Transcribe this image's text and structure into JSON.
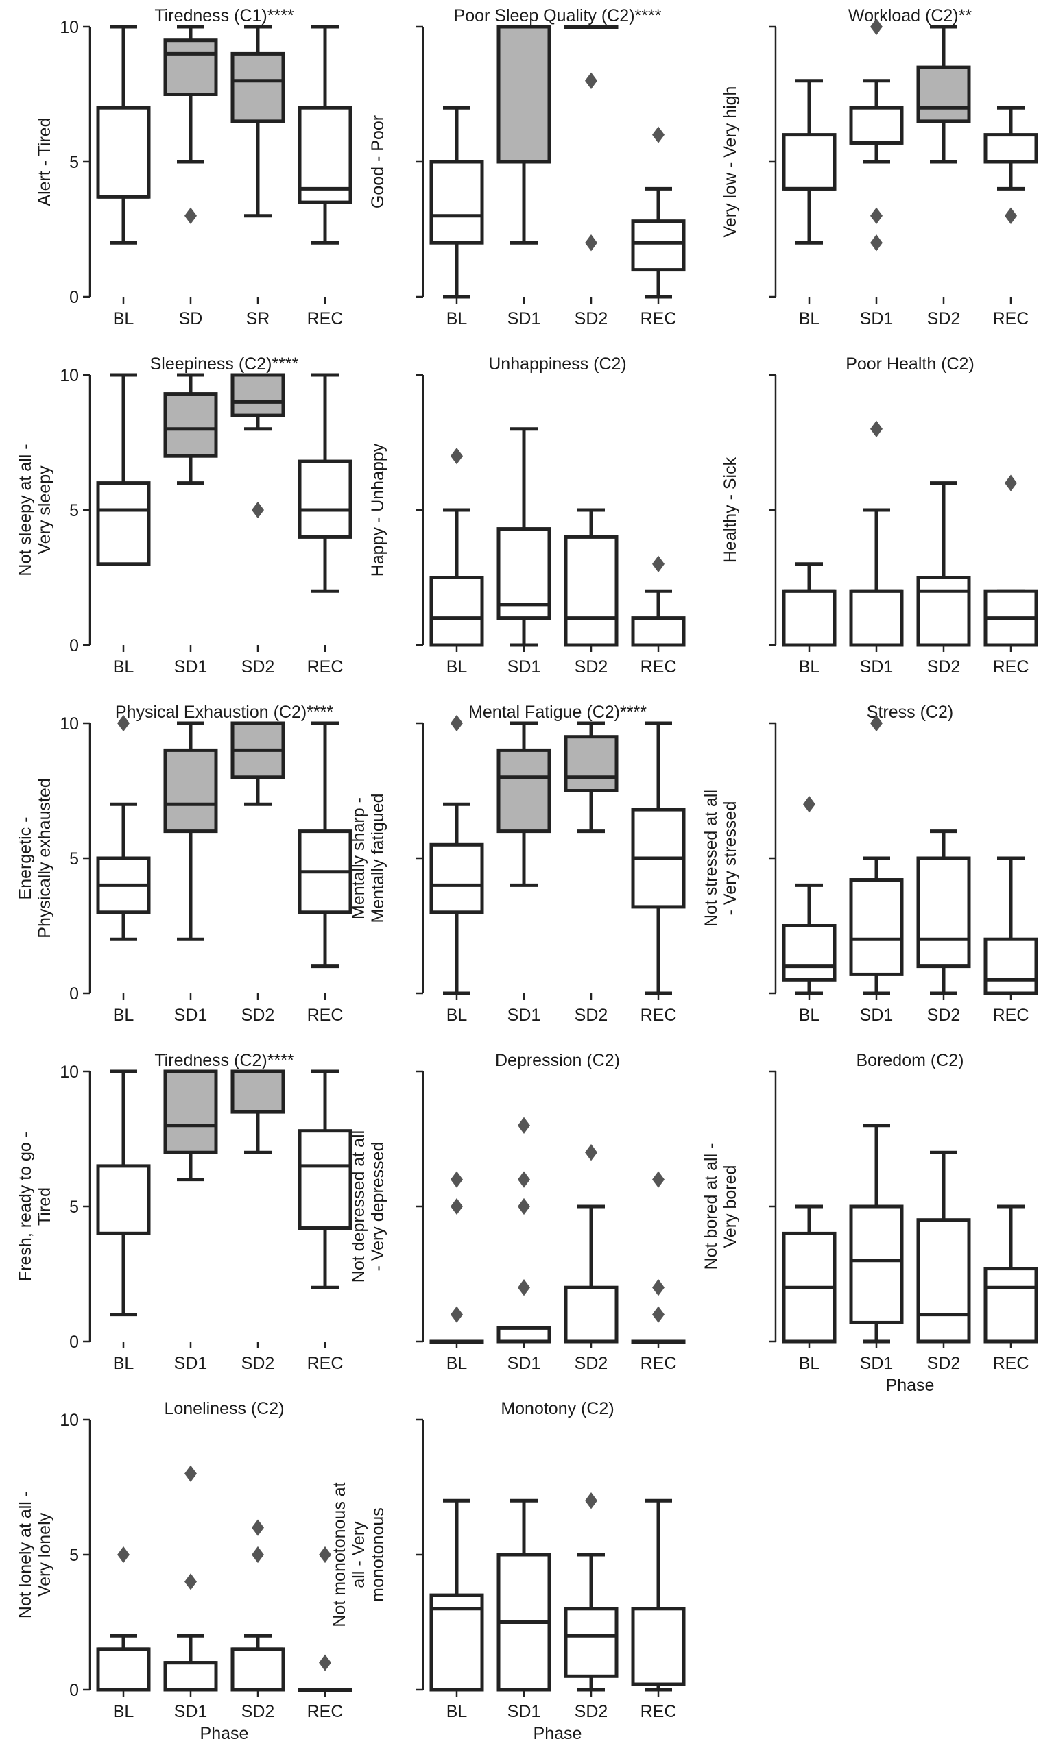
{
  "colors": {
    "shaded": "#b3b3b3",
    "plain": "#ffffff",
    "line": "#222222",
    "flier": "#555555"
  },
  "chart_data": [
    {
      "type": "box",
      "title": "Tiredness (C1)****",
      "ylabel": [
        "Alert - Tired"
      ],
      "xlabel": "",
      "ylim": [
        0,
        10
      ],
      "yticks": [
        "0",
        "5",
        "10"
      ],
      "categories": [
        "BL",
        "SD",
        "SR",
        "REC"
      ],
      "boxes": [
        {
          "q1": 3.7,
          "med": 3.7,
          "q3": 7,
          "lo": 2,
          "hi": 10,
          "fliers": [],
          "shaded": false
        },
        {
          "q1": 7.5,
          "med": 9,
          "q3": 9.5,
          "lo": 5,
          "hi": 10,
          "fliers": [
            3
          ],
          "shaded": true
        },
        {
          "q1": 6.5,
          "med": 8,
          "q3": 9,
          "lo": 3,
          "hi": 10,
          "fliers": [],
          "shaded": true
        },
        {
          "q1": 3.5,
          "med": 4,
          "q3": 7,
          "lo": 2,
          "hi": 10,
          "fliers": [],
          "shaded": false
        }
      ]
    },
    {
      "type": "box",
      "title": "Poor Sleep Quality (C2)****",
      "ylabel": [
        "Good - Poor"
      ],
      "xlabel": "",
      "ylim": [
        0,
        10
      ],
      "yticks": [
        "",
        "",
        ""
      ],
      "categories": [
        "BL",
        "SD1",
        "SD2",
        "REC"
      ],
      "boxes": [
        {
          "q1": 2,
          "med": 3,
          "q3": 5,
          "lo": 0,
          "hi": 7,
          "fliers": [],
          "shaded": false
        },
        {
          "q1": 5,
          "med": 10,
          "q3": 10,
          "lo": 2,
          "hi": 10,
          "fliers": [],
          "shaded": true
        },
        {
          "q1": 10,
          "med": 10,
          "q3": 10,
          "lo": 10,
          "hi": 10,
          "fliers": [
            8,
            2
          ],
          "shaded": true
        },
        {
          "q1": 1,
          "med": 2,
          "q3": 2.8,
          "lo": 0,
          "hi": 4,
          "fliers": [
            6
          ],
          "shaded": false
        }
      ]
    },
    {
      "type": "box",
      "title": "Workload (C2)**",
      "ylabel": [
        "Very low - Very high"
      ],
      "xlabel": "",
      "ylim": [
        0,
        10
      ],
      "yticks": [
        "",
        "",
        ""
      ],
      "categories": [
        "BL",
        "SD1",
        "SD2",
        "REC"
      ],
      "boxes": [
        {
          "q1": 4,
          "med": 4,
          "q3": 6,
          "lo": 2,
          "hi": 8,
          "fliers": [],
          "shaded": false
        },
        {
          "q1": 5.7,
          "med": 5.7,
          "q3": 7,
          "lo": 5,
          "hi": 8,
          "fliers": [
            10,
            3,
            2
          ],
          "shaded": false
        },
        {
          "q1": 6.5,
          "med": 7,
          "q3": 8.5,
          "lo": 5,
          "hi": 10,
          "fliers": [],
          "shaded": true
        },
        {
          "q1": 5,
          "med": 5,
          "q3": 6,
          "lo": 4,
          "hi": 7,
          "fliers": [
            3
          ],
          "shaded": false
        }
      ]
    },
    {
      "type": "box",
      "title": "Sleepiness (C2)****",
      "ylabel": [
        "Not sleepy at all -",
        "Very sleepy"
      ],
      "xlabel": "",
      "ylim": [
        0,
        10
      ],
      "yticks": [
        "0",
        "5",
        "10"
      ],
      "categories": [
        "BL",
        "SD1",
        "SD2",
        "REC"
      ],
      "boxes": [
        {
          "q1": 3,
          "med": 5,
          "q3": 6,
          "lo": 3,
          "hi": 10,
          "fliers": [],
          "shaded": false
        },
        {
          "q1": 7,
          "med": 8,
          "q3": 9.3,
          "lo": 6,
          "hi": 10,
          "fliers": [],
          "shaded": true
        },
        {
          "q1": 8.5,
          "med": 9,
          "q3": 10,
          "lo": 8,
          "hi": 10,
          "fliers": [
            5
          ],
          "shaded": true
        },
        {
          "q1": 4,
          "med": 5,
          "q3": 6.8,
          "lo": 2,
          "hi": 10,
          "fliers": [],
          "shaded": false
        }
      ]
    },
    {
      "type": "box",
      "title": "Unhappiness (C2)",
      "ylabel": [
        "Happy - Unhappy"
      ],
      "xlabel": "",
      "ylim": [
        0,
        10
      ],
      "yticks": [
        "",
        "",
        ""
      ],
      "categories": [
        "BL",
        "SD1",
        "SD2",
        "REC"
      ],
      "boxes": [
        {
          "q1": 0,
          "med": 1,
          "q3": 2.5,
          "lo": 0,
          "hi": 5,
          "fliers": [
            7
          ],
          "shaded": false
        },
        {
          "q1": 1,
          "med": 1.5,
          "q3": 4.3,
          "lo": 0,
          "hi": 8,
          "fliers": [],
          "shaded": false
        },
        {
          "q1": 0,
          "med": 1,
          "q3": 4,
          "lo": 0,
          "hi": 5,
          "fliers": [],
          "shaded": false
        },
        {
          "q1": 0,
          "med": 0,
          "q3": 1,
          "lo": 0,
          "hi": 2,
          "fliers": [
            3
          ],
          "shaded": false
        }
      ]
    },
    {
      "type": "box",
      "title": "Poor Health (C2)",
      "ylabel": [
        "Healthy - Sick"
      ],
      "xlabel": "",
      "ylim": [
        0,
        10
      ],
      "yticks": [
        "",
        "",
        ""
      ],
      "categories": [
        "BL",
        "SD1",
        "SD2",
        "REC"
      ],
      "boxes": [
        {
          "q1": 0,
          "med": 2,
          "q3": 2,
          "lo": 0,
          "hi": 3,
          "fliers": [],
          "shaded": false
        },
        {
          "q1": 0,
          "med": 2,
          "q3": 2,
          "lo": 0,
          "hi": 5,
          "fliers": [
            8
          ],
          "shaded": false
        },
        {
          "q1": 0,
          "med": 2,
          "q3": 2.5,
          "lo": 0,
          "hi": 6,
          "fliers": [],
          "shaded": false
        },
        {
          "q1": 0,
          "med": 1,
          "q3": 2,
          "lo": 0,
          "hi": 2,
          "fliers": [
            6
          ],
          "shaded": false
        }
      ]
    },
    {
      "type": "box",
      "title": "Physical Exhaustion (C2)****",
      "ylabel": [
        "Energetic -",
        "Physically exhausted"
      ],
      "xlabel": "",
      "ylim": [
        0,
        10
      ],
      "yticks": [
        "0",
        "5",
        "10"
      ],
      "categories": [
        "BL",
        "SD1",
        "SD2",
        "REC"
      ],
      "boxes": [
        {
          "q1": 3,
          "med": 4,
          "q3": 5,
          "lo": 2,
          "hi": 7,
          "fliers": [
            10
          ],
          "shaded": false
        },
        {
          "q1": 6,
          "med": 7,
          "q3": 9,
          "lo": 2,
          "hi": 10,
          "fliers": [],
          "shaded": true
        },
        {
          "q1": 8,
          "med": 9,
          "q3": 10,
          "lo": 7,
          "hi": 10,
          "fliers": [],
          "shaded": true
        },
        {
          "q1": 3,
          "med": 4.5,
          "q3": 6,
          "lo": 1,
          "hi": 10,
          "fliers": [],
          "shaded": false
        }
      ]
    },
    {
      "type": "box",
      "title": "Mental Fatigue (C2)****",
      "ylabel": [
        "Mentally sharp -",
        "Mentally fatigued"
      ],
      "xlabel": "",
      "ylim": [
        0,
        10
      ],
      "yticks": [
        "",
        "",
        ""
      ],
      "categories": [
        "BL",
        "SD1",
        "SD2",
        "REC"
      ],
      "boxes": [
        {
          "q1": 3,
          "med": 4,
          "q3": 5.5,
          "lo": 0,
          "hi": 7,
          "fliers": [
            10
          ],
          "shaded": false
        },
        {
          "q1": 6,
          "med": 8,
          "q3": 9,
          "lo": 4,
          "hi": 10,
          "fliers": [],
          "shaded": true
        },
        {
          "q1": 7.5,
          "med": 8,
          "q3": 9.5,
          "lo": 6,
          "hi": 10,
          "fliers": [],
          "shaded": true
        },
        {
          "q1": 3.2,
          "med": 5,
          "q3": 6.8,
          "lo": 0,
          "hi": 10,
          "fliers": [],
          "shaded": false
        }
      ]
    },
    {
      "type": "box",
      "title": "Stress (C2)",
      "ylabel": [
        "Not stressed at all",
        "- Very stressed"
      ],
      "xlabel": "",
      "ylim": [
        0,
        10
      ],
      "yticks": [
        "",
        "",
        ""
      ],
      "categories": [
        "BL",
        "SD1",
        "SD2",
        "REC"
      ],
      "boxes": [
        {
          "q1": 0.5,
          "med": 1,
          "q3": 2.5,
          "lo": 0,
          "hi": 4,
          "fliers": [
            7
          ],
          "shaded": false
        },
        {
          "q1": 0.7,
          "med": 2,
          "q3": 4.2,
          "lo": 0,
          "hi": 5,
          "fliers": [
            10
          ],
          "shaded": false
        },
        {
          "q1": 1,
          "med": 2,
          "q3": 5,
          "lo": 0,
          "hi": 6,
          "fliers": [],
          "shaded": false
        },
        {
          "q1": 0,
          "med": 0.5,
          "q3": 2,
          "lo": 0,
          "hi": 5,
          "fliers": [],
          "shaded": false
        }
      ]
    },
    {
      "type": "box",
      "title": "Tiredness (C2)****",
      "ylabel": [
        "Fresh, ready to go -",
        "Tired"
      ],
      "xlabel": "",
      "ylim": [
        0,
        10
      ],
      "yticks": [
        "0",
        "5",
        "10"
      ],
      "categories": [
        "BL",
        "SD1",
        "SD2",
        "REC"
      ],
      "boxes": [
        {
          "q1": 4,
          "med": 4,
          "q3": 6.5,
          "lo": 1,
          "hi": 10,
          "fliers": [],
          "shaded": false
        },
        {
          "q1": 7,
          "med": 8,
          "q3": 10,
          "lo": 6,
          "hi": 10,
          "fliers": [],
          "shaded": true
        },
        {
          "q1": 8.5,
          "med": 10,
          "q3": 10,
          "lo": 7,
          "hi": 10,
          "fliers": [],
          "shaded": true
        },
        {
          "q1": 4.2,
          "med": 6.5,
          "q3": 7.8,
          "lo": 2,
          "hi": 10,
          "fliers": [],
          "shaded": false
        }
      ]
    },
    {
      "type": "box",
      "title": "Depression (C2)",
      "ylabel": [
        "Not depressed at all",
        "- Very depressed"
      ],
      "xlabel": "",
      "ylim": [
        0,
        10
      ],
      "yticks": [
        "",
        "",
        ""
      ],
      "categories": [
        "BL",
        "SD1",
        "SD2",
        "REC"
      ],
      "boxes": [
        {
          "q1": 0,
          "med": 0,
          "q3": 0,
          "lo": 0,
          "hi": 0,
          "fliers": [
            6,
            5,
            1
          ],
          "shaded": false
        },
        {
          "q1": 0,
          "med": 0.5,
          "q3": 0.5,
          "lo": 0,
          "hi": 0.5,
          "fliers": [
            8,
            6,
            5,
            2
          ],
          "shaded": false
        },
        {
          "q1": 0,
          "med": 0,
          "q3": 2,
          "lo": 0,
          "hi": 5,
          "fliers": [
            7
          ],
          "shaded": false
        },
        {
          "q1": 0,
          "med": 0,
          "q3": 0,
          "lo": 0,
          "hi": 0,
          "fliers": [
            6,
            2,
            1
          ],
          "shaded": false
        }
      ]
    },
    {
      "type": "box",
      "title": "Boredom (C2)",
      "ylabel": [
        "Not bored at all -",
        "Very bored"
      ],
      "xlabel": "Phase",
      "ylim": [
        0,
        10
      ],
      "yticks": [
        "",
        "",
        ""
      ],
      "categories": [
        "BL",
        "SD1",
        "SD2",
        "REC"
      ],
      "boxes": [
        {
          "q1": 0,
          "med": 2,
          "q3": 4,
          "lo": 0,
          "hi": 5,
          "fliers": [],
          "shaded": false
        },
        {
          "q1": 0.7,
          "med": 3,
          "q3": 5,
          "lo": 0,
          "hi": 8,
          "fliers": [],
          "shaded": false
        },
        {
          "q1": 0,
          "med": 1,
          "q3": 4.5,
          "lo": 0,
          "hi": 7,
          "fliers": [],
          "shaded": false
        },
        {
          "q1": 0,
          "med": 2,
          "q3": 2.7,
          "lo": 0,
          "hi": 5,
          "fliers": [],
          "shaded": false
        }
      ]
    },
    {
      "type": "box",
      "title": "Loneliness (C2)",
      "ylabel": [
        "Not lonely at all -",
        "Very lonely"
      ],
      "xlabel": "Phase",
      "ylim": [
        0,
        10
      ],
      "yticks": [
        "0",
        "5",
        "10"
      ],
      "categories": [
        "BL",
        "SD1",
        "SD2",
        "REC"
      ],
      "boxes": [
        {
          "q1": 0,
          "med": 1.5,
          "q3": 1.5,
          "lo": 0,
          "hi": 2,
          "fliers": [
            5
          ],
          "shaded": false
        },
        {
          "q1": 0,
          "med": 1,
          "q3": 1,
          "lo": 0,
          "hi": 2,
          "fliers": [
            8,
            4
          ],
          "shaded": false
        },
        {
          "q1": 0,
          "med": 1.5,
          "q3": 1.5,
          "lo": 0,
          "hi": 2,
          "fliers": [
            6,
            5
          ],
          "shaded": false
        },
        {
          "q1": 0,
          "med": 0,
          "q3": 0,
          "lo": 0,
          "hi": 0,
          "fliers": [
            5,
            1
          ],
          "shaded": false
        }
      ]
    },
    {
      "type": "box",
      "title": "Monotony (C2)",
      "ylabel": [
        "Not monotonous at",
        "all - Very",
        "monotonous"
      ],
      "xlabel": "Phase",
      "ylim": [
        0,
        10
      ],
      "yticks": [
        "",
        "",
        ""
      ],
      "categories": [
        "BL",
        "SD1",
        "SD2",
        "REC"
      ],
      "boxes": [
        {
          "q1": 0,
          "med": 3,
          "q3": 3.5,
          "lo": 0,
          "hi": 7,
          "fliers": [],
          "shaded": false
        },
        {
          "q1": 0,
          "med": 2.5,
          "q3": 5,
          "lo": 0,
          "hi": 7,
          "fliers": [],
          "shaded": false
        },
        {
          "q1": 0.5,
          "med": 2,
          "q3": 3,
          "lo": 0,
          "hi": 5,
          "fliers": [
            7
          ],
          "shaded": false
        },
        {
          "q1": 0.2,
          "med": 0.2,
          "q3": 3,
          "lo": 0,
          "hi": 7,
          "fliers": [],
          "shaded": false
        }
      ]
    }
  ]
}
